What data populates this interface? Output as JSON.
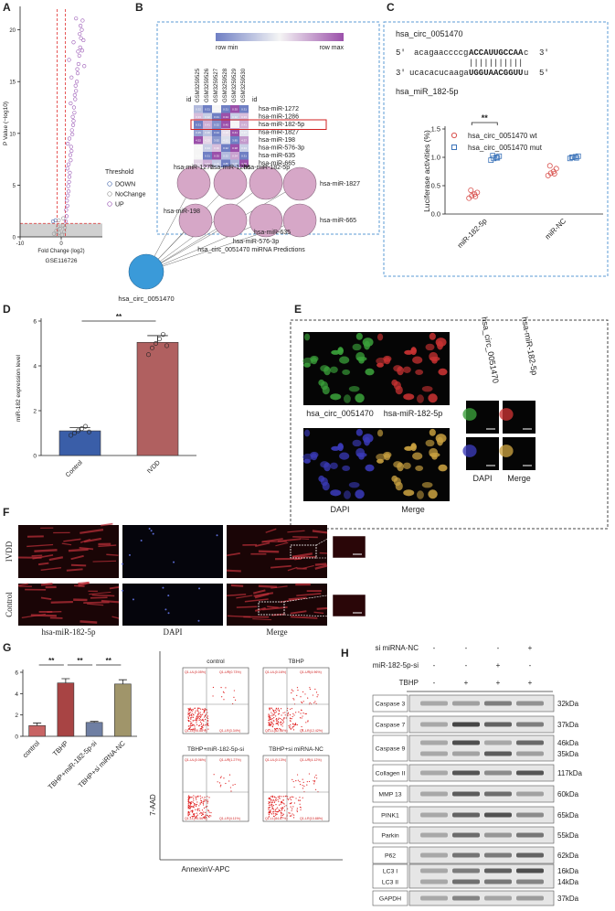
{
  "figure": {
    "panel_labels": [
      "A",
      "B",
      "C",
      "D",
      "E",
      "F",
      "G",
      "H"
    ],
    "heatmap": {
      "min_label": "row min",
      "max_label": "row max",
      "id_label": "id",
      "columns": [
        "GSM3259525",
        "GSM3259526",
        "GSM3259527",
        "GSM3259528",
        "GSM3259529",
        "GSM3259530"
      ],
      "rows": [
        "hsa-miR-1272",
        "hsa-miR-1286",
        "hsa-miR-182-5p",
        "hsa-miR-1827",
        "hsa-miR-198",
        "hsa-miR-576-3p",
        "hsa-miR-635",
        "hsa-miR-665"
      ],
      "values": [
        [
          0.32,
          0.31,
          0.33,
          0.31,
          0.35,
          0.31
        ],
        [
          0.33,
          0.32,
          0.31,
          0.34,
          0.32,
          0.33
        ],
        [
          0.31,
          0.41,
          0.32,
          0.45,
          0.38,
          0.41
        ],
        [
          0.35,
          0.36,
          0.34,
          0.38,
          0.41,
          0.37
        ],
        [
          4.52,
          4.25,
          3.92,
          4.12,
          3.85,
          4.37
        ],
        [
          0.35,
          0.34,
          0.36,
          0.32,
          0.38,
          0.34
        ],
        [
          0.33,
          0.31,
          0.35,
          0.32,
          0.34,
          0.31
        ],
        [
          4.41,
          4.51,
          4.15,
          3.85,
          4.05,
          4.78
        ]
      ],
      "highlight": "hsa-miR-182-5p"
    },
    "network": {
      "title": "hsa_circ_0051470 miRNA Predictions",
      "center": "hsa_circ_0051470",
      "nodes": [
        "hsa-miR-1272",
        "hsa-miR-1286",
        "hsa-miR-182-5p",
        "hsa-miR-1827",
        "hsa-miR-198",
        "hsa-miR-576-3p",
        "hsa-miR-635",
        "hsa-miR-665"
      ]
    },
    "sequence": {
      "title": "hsa_circ_0051470",
      "line1": {
        "end5": "5'",
        "plain": "acagaaccccg",
        "bold": "ACCAUUGCCAA",
        "tail": "c",
        "end3": "3'"
      },
      "pairs": "|||||||||||",
      "line2": {
        "end3": "3'",
        "plain": "ucacacucaaga",
        "bold": "UGGUAACGGUU",
        "tail": "u",
        "end5": "5'"
      },
      "mirna": "hsa_miR_182-5p"
    },
    "fluorescence": {
      "tiles": [
        "hsa_circ_0051470",
        "hsa-miR-182-5p",
        "DAPI",
        "Merge"
      ],
      "zoom_titles": [
        "hsa_circ_0051470",
        "hsa-miR-182-5p"
      ],
      "zoom_labels": [
        "DAPI",
        "Merge"
      ]
    },
    "tissue": {
      "rows": [
        "IVDD",
        "Control"
      ],
      "columns": [
        "hsa-miR-182-5p",
        "DAPI",
        "Merge"
      ]
    },
    "flow": {
      "y_label": "7-AAD",
      "x_label": "AnnexinV-APC",
      "plots": [
        {
          "title": "control",
          "quadrants": [
            "Q1-UL(0.05%)",
            "Q1-UR(0.73%)",
            "Q1-LL(95.88%)",
            "Q1-LR(3.34%)"
          ]
        },
        {
          "title": "TBHP",
          "quadrants": [
            "Q1-UL(0.16%)",
            "Q1-UR(4.96%)",
            "Q1-LL(82.46%)",
            "Q1-LR(12.42%)"
          ]
        },
        {
          "title": "TBHP+miR-182-5p-si",
          "quadrants": [
            "Q1-UL(0.06%)",
            "Q1-UR(1.27%)",
            "Q1-LL(94.56%)",
            "Q1-LR(4.11%)"
          ]
        },
        {
          "title": "TBHP+si miRNA-NC",
          "quadrants": [
            "Q1-UL(0.13%)",
            "Q1-UR(4.12%)",
            "Q1-LL(84.87%)",
            "Q1-LR(10.88%)"
          ]
        }
      ]
    },
    "western": {
      "conditions": [
        {
          "label": "si miRNA-NC",
          "signs": [
            "-",
            "-",
            "-",
            "+"
          ]
        },
        {
          "label": "miR-182-5p-si",
          "signs": [
            "-",
            "-",
            "+",
            "-"
          ]
        },
        {
          "label": "TBHP",
          "signs": [
            "-",
            "+",
            "+",
            "+"
          ]
        }
      ],
      "proteins": [
        {
          "names": [
            "Caspase 3"
          ],
          "kda": [
            "32kDa"
          ]
        },
        {
          "names": [
            "Caspase 7"
          ],
          "kda": [
            "37kDa"
          ]
        },
        {
          "names": [
            "Caspase 9"
          ],
          "kda": [
            "46kDa",
            "35kDa"
          ]
        },
        {
          "names": [
            "Collagen II"
          ],
          "kda": [
            "117kDa"
          ]
        },
        {
          "names": [
            "MMP 13"
          ],
          "kda": [
            "60kDa"
          ]
        },
        {
          "names": [
            "PINK1"
          ],
          "kda": [
            "65kDa"
          ]
        },
        {
          "names": [
            "Parkin"
          ],
          "kda": [
            "55kDa"
          ]
        },
        {
          "names": [
            "P62"
          ],
          "kda": [
            "62kDa"
          ]
        },
        {
          "names": [
            "LC3 I",
            "LC3 II"
          ],
          "kda": [
            "16kDa",
            "14kDa"
          ]
        },
        {
          "names": [
            "GAPDH"
          ],
          "kda": [
            "37kDa"
          ]
        }
      ]
    }
  },
  "chart_data": [
    {
      "type": "scatter",
      "x_label": "Fold Change (log2)",
      "caption": "GSE116726",
      "y_label": "P Value (−log10)",
      "legend_title": "Threshold",
      "xlim": [
        -10,
        10
      ],
      "xticks": [
        -10,
        0
      ],
      "ylim": [
        0,
        22
      ],
      "yticks": [
        0,
        5,
        10,
        15,
        20
      ],
      "fc_thresholds": [
        -1,
        1
      ],
      "p_threshold": 1.3,
      "series": [
        {
          "name": "DOWN",
          "color": "#4f6fb0",
          "x": [
            -1.4,
            -2.0
          ],
          "y": [
            1.6,
            1.5
          ]
        },
        {
          "name": "NoChange",
          "color": "#999999",
          "x": [
            -1.8,
            -1.2,
            -0.8,
            -0.5,
            -0.3,
            0.2,
            0.4,
            0.7,
            0.9,
            -0.6,
            0.5,
            -1.0
          ],
          "y": [
            0.3,
            0.6,
            1.0,
            0.4,
            0.8,
            0.2,
            1.1,
            0.5,
            0.9,
            1.6,
            1.8,
            0.2
          ]
        },
        {
          "name": "UP",
          "color": "#9b59b6",
          "x": [
            1.1,
            1.3,
            1.2,
            1.5,
            1.4,
            1.6,
            1.8,
            1.7,
            1.9,
            2.0,
            2.1,
            1.5,
            1.8,
            2.3,
            2.2,
            2.5,
            2.4,
            1.6,
            2.0,
            2.7,
            2.6,
            2.9,
            3.0,
            2.8,
            3.2,
            3.1,
            2.3,
            3.4,
            3.3,
            3.6,
            3.5,
            3.8,
            2.5,
            4.0,
            3.9,
            4.2,
            1.9,
            4.4,
            4.1,
            4.6,
            3.0,
            4.8,
            4.5,
            5.0,
            4.7,
            5.2,
            3.6,
            5.4,
            5.1,
            5.6
          ],
          "y": [
            1.5,
            2.0,
            2.6,
            3.0,
            3.5,
            4.0,
            4.4,
            4.9,
            5.3,
            5.8,
            6.2,
            6.6,
            7.0,
            7.4,
            7.9,
            8.3,
            8.7,
            9.0,
            9.5,
            9.9,
            10.3,
            10.8,
            11.2,
            11.6,
            12.0,
            12.5,
            12.9,
            13.3,
            13.7,
            14.1,
            14.6,
            15.0,
            15.4,
            15.8,
            16.2,
            16.7,
            17.1,
            17.5,
            17.9,
            18.3,
            18.8,
            19.2,
            19.6,
            20.0,
            20.4,
            20.9,
            21.1,
            19.0,
            18.0,
            16.5
          ]
        }
      ]
    },
    {
      "type": "strip",
      "y_label": "Luciferase activities (%)",
      "categories": [
        "miR-182-5p",
        "miR-NC"
      ],
      "ylim": [
        0,
        1.5
      ],
      "yticks": [
        {
          "value": 0,
          "label": "0.0"
        },
        {
          "value": 0.5,
          "label": "0.5"
        },
        {
          "value": 1,
          "label": "1.0"
        },
        {
          "value": 1.5,
          "label": "1.5"
        }
      ],
      "annotation": "**",
      "series": [
        {
          "name": "hsa_circ_0051470 wt",
          "color": "#d9534f",
          "marker": "circle",
          "values": [
            [
              0.28,
              0.32,
              0.35,
              0.38,
              0.42,
              0.31
            ],
            [
              0.68,
              0.72,
              0.75,
              0.8,
              0.85,
              0.71
            ]
          ]
        },
        {
          "name": "hsa_circ_0051470 mut",
          "color": "#3b73b9",
          "marker": "square",
          "values": [
            [
              0.95,
              0.98,
              1.0,
              1.02,
              1.03,
              0.99
            ],
            [
              0.98,
              1.0,
              1.01,
              1.02,
              1.0,
              0.99
            ]
          ]
        }
      ]
    },
    {
      "type": "bar",
      "y_label": "miR-182 expression level",
      "categories": [
        "Control",
        "IVDD"
      ],
      "values": [
        1.1,
        5.05
      ],
      "errors": [
        0.15,
        0.3
      ],
      "points": [
        [
          0.9,
          1.0,
          1.1,
          1.2,
          1.3,
          1.05
        ],
        [
          4.5,
          4.8,
          5.0,
          5.2,
          5.4,
          4.9
        ]
      ],
      "colors": [
        "#3a5ea8",
        "#b06060"
      ],
      "ylim": [
        0,
        6
      ],
      "yticks": [
        0,
        2,
        4,
        6
      ],
      "annotations": [
        "**"
      ]
    },
    {
      "type": "bar",
      "categories": [
        "control",
        "TBHP",
        "TBHP+miR-182-5p-si",
        "TBHP+si miRNA-NC"
      ],
      "values": [
        1.0,
        5.0,
        1.3,
        4.9
      ],
      "errors": [
        0.25,
        0.4,
        0.1,
        0.4
      ],
      "colors": [
        "#c86464",
        "#a84444",
        "#6f7fa3",
        "#a0956a"
      ],
      "ylim": [
        0,
        6
      ],
      "yticks": [
        0,
        2,
        4,
        6
      ],
      "annotations": [
        "**",
        "**",
        "**"
      ]
    }
  ]
}
